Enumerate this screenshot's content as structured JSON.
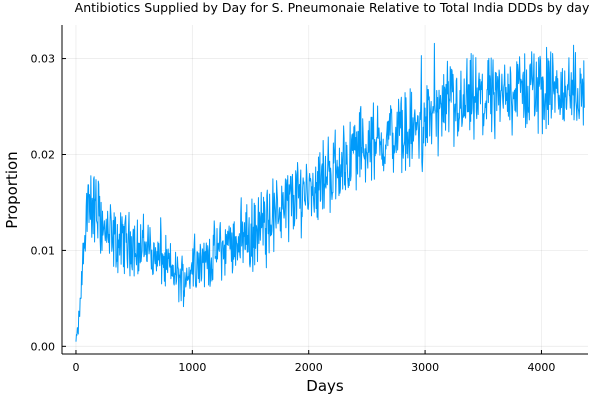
{
  "chart_data": {
    "type": "line",
    "title": "Antibiotics Supplied by Day for S. Pneumonaie Relative to Total India DDDs by day",
    "xlabel": "Days",
    "ylabel": "Proportion",
    "xlim": [
      -120,
      4400
    ],
    "ylim": [
      -0.0008,
      0.0335
    ],
    "x_ticks": [
      0,
      1000,
      2000,
      3000,
      4000
    ],
    "x_tick_labels": [
      "0",
      "1000",
      "2000",
      "3000",
      "4000"
    ],
    "y_ticks": [
      0,
      0.01,
      0.02,
      0.03
    ],
    "y_tick_labels": [
      "0.00",
      "0.01",
      "0.02",
      "0.03"
    ],
    "grid": true,
    "legend": "none",
    "colors": {
      "series": "#009AFA",
      "axis": "#000000",
      "background": "#FFFFFF"
    },
    "series": [
      {
        "color": "#009AFA",
        "x": [
          0,
          20,
          40,
          60,
          80,
          100,
          130,
          160,
          200,
          240,
          300,
          360,
          420,
          480,
          540,
          600,
          660,
          720,
          780,
          840,
          900,
          960,
          1020,
          1080,
          1140,
          1200,
          1260,
          1320,
          1380,
          1440,
          1500,
          1560,
          1620,
          1680,
          1740,
          1800,
          1860,
          1920,
          1980,
          2040,
          2100,
          2160,
          2220,
          2280,
          2340,
          2400,
          2460,
          2520,
          2580,
          2640,
          2700,
          2760,
          2820,
          2880,
          2940,
          3000,
          3060,
          3120,
          3180,
          3240,
          3300,
          3360,
          3420,
          3480,
          3540,
          3600,
          3660,
          3720,
          3780,
          3840,
          3900,
          3960,
          4020,
          4080,
          4140,
          4200,
          4260,
          4320,
          4370
        ],
        "y": [
          0.0005,
          0.002,
          0.005,
          0.009,
          0.0125,
          0.0145,
          0.015,
          0.0145,
          0.0138,
          0.012,
          0.0115,
          0.0105,
          0.0112,
          0.0108,
          0.0102,
          0.0105,
          0.0098,
          0.009,
          0.0085,
          0.0078,
          0.007,
          0.0075,
          0.0095,
          0.0088,
          0.0092,
          0.0098,
          0.0102,
          0.0105,
          0.0112,
          0.0118,
          0.0112,
          0.0122,
          0.013,
          0.0135,
          0.0142,
          0.0148,
          0.0152,
          0.0158,
          0.0165,
          0.0168,
          0.0172,
          0.018,
          0.0185,
          0.019,
          0.0195,
          0.0205,
          0.021,
          0.0212,
          0.021,
          0.0215,
          0.022,
          0.0218,
          0.0222,
          0.0225,
          0.0228,
          0.0232,
          0.0245,
          0.0242,
          0.0248,
          0.025,
          0.0248,
          0.0255,
          0.0258,
          0.0252,
          0.026,
          0.0262,
          0.0258,
          0.0265,
          0.0268,
          0.0265,
          0.027,
          0.0268,
          0.0265,
          0.0268,
          0.0265,
          0.0262,
          0.0268,
          0.0265,
          0.027
        ],
        "noise_amplitude": [
          0.0003,
          0.0008,
          0.0015,
          0.002,
          0.0028,
          0.0032,
          0.0033,
          0.0033,
          0.003,
          0.0028,
          0.0026,
          0.0025,
          0.0025,
          0.0024,
          0.0024,
          0.0024,
          0.0023,
          0.0022,
          0.0021,
          0.002,
          0.0019,
          0.002,
          0.0022,
          0.0022,
          0.0022,
          0.0023,
          0.0024,
          0.0025,
          0.0026,
          0.0027,
          0.0027,
          0.0028,
          0.0028,
          0.0029,
          0.0029,
          0.003,
          0.003,
          0.003,
          0.003,
          0.003,
          0.0031,
          0.0031,
          0.0031,
          0.0032,
          0.0032,
          0.0032,
          0.0032,
          0.0032,
          0.0032,
          0.0032,
          0.0032,
          0.0032,
          0.0032,
          0.0032,
          0.0032,
          0.0033,
          0.0033,
          0.0033,
          0.0033,
          0.0033,
          0.0033,
          0.0033,
          0.0033,
          0.0033,
          0.0033,
          0.0033,
          0.0033,
          0.0033,
          0.0033,
          0.0033,
          0.0033,
          0.0033,
          0.0033,
          0.0033,
          0.0033,
          0.0033,
          0.0033,
          0.0033,
          0.0033
        ]
      }
    ]
  }
}
